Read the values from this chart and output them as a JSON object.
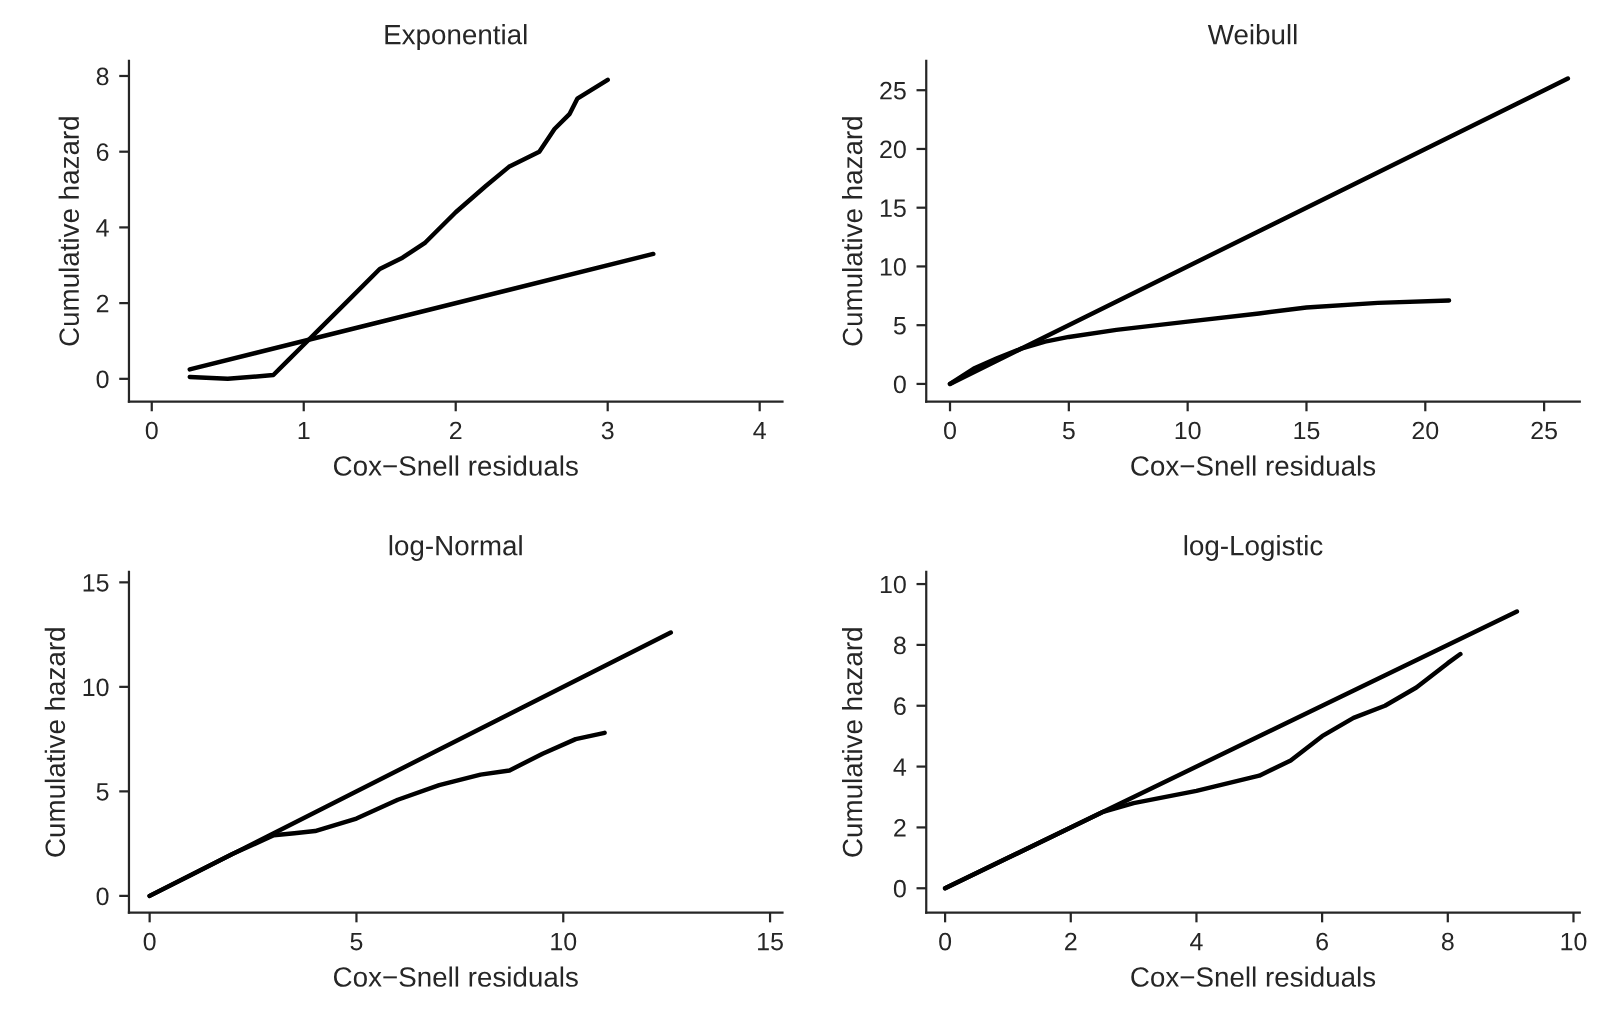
{
  "chart_data": [
    {
      "type": "line",
      "title": "Exponential",
      "xlabel": "Cox−Snell residuals",
      "ylabel": "Cumulative hazard",
      "xlim": [
        -0.15,
        4.15
      ],
      "ylim": [
        -0.6,
        8.4
      ],
      "xticks": [
        0,
        1,
        2,
        3,
        4
      ],
      "yticks": [
        0,
        2,
        4,
        6,
        8
      ],
      "grid": false,
      "legend": false,
      "marker": "none",
      "line_style": "solid",
      "series": [
        {
          "color": "#000000",
          "x": [
            0.25,
            0.5,
            0.8,
            0.9,
            1.0,
            1.1,
            1.3,
            1.5,
            1.65,
            1.8,
            2.0,
            2.2,
            2.35,
            2.55,
            2.65,
            2.75,
            2.8,
            3.0
          ],
          "values": [
            0.05,
            0,
            0.1,
            0.5,
            0.9,
            1.3,
            2.1,
            2.9,
            3.2,
            3.6,
            4.4,
            5.1,
            5.6,
            6.0,
            6.6,
            7.0,
            7.4,
            7.9
          ]
        },
        {
          "color": "#000000",
          "x": [
            0.25,
            3.3
          ],
          "values": [
            0.25,
            3.3
          ]
        }
      ]
    },
    {
      "type": "line",
      "title": "Weibull",
      "xlabel": "Cox−Snell residuals",
      "ylabel": "Cumulative hazard",
      "xlim": [
        -1,
        26.5
      ],
      "ylim": [
        -1.5,
        27.5
      ],
      "xticks": [
        0,
        5,
        10,
        15,
        20,
        25
      ],
      "yticks": [
        0,
        5,
        10,
        15,
        20,
        25
      ],
      "grid": false,
      "legend": false,
      "marker": "none",
      "line_style": "solid",
      "series": [
        {
          "color": "#000000",
          "x": [
            0,
            1,
            2,
            3,
            4,
            5,
            7,
            10,
            13,
            15,
            18,
            21
          ],
          "values": [
            0,
            1.3,
            2.2,
            3.0,
            3.6,
            4.0,
            4.6,
            5.3,
            6.0,
            6.5,
            6.9,
            7.1
          ]
        },
        {
          "color": "#000000",
          "x": [
            0,
            26
          ],
          "values": [
            0,
            26
          ]
        }
      ]
    },
    {
      "type": "line",
      "title": "log-Normal",
      "xlabel": "Cox−Snell residuals",
      "ylabel": "Cumulative hazard",
      "xlim": [
        -0.5,
        15.3
      ],
      "ylim": [
        -0.8,
        15.5
      ],
      "xticks": [
        0,
        5,
        10,
        15
      ],
      "yticks": [
        0,
        5,
        10,
        15
      ],
      "grid": false,
      "legend": false,
      "marker": "none",
      "line_style": "solid",
      "series": [
        {
          "color": "#000000",
          "x": [
            0,
            1,
            2,
            3,
            3.5,
            4,
            5,
            6,
            7,
            8,
            8.7,
            9.5,
            10.3,
            11
          ],
          "values": [
            0,
            1,
            2,
            2.9,
            3.0,
            3.1,
            3.7,
            4.6,
            5.3,
            5.8,
            6.0,
            6.8,
            7.5,
            7.8
          ]
        },
        {
          "color": "#000000",
          "x": [
            0,
            12.6
          ],
          "values": [
            0,
            12.6
          ]
        }
      ]
    },
    {
      "type": "line",
      "title": "log-Logistic",
      "xlabel": "Cox−Snell residuals",
      "ylabel": "Cumulative hazard",
      "xlim": [
        -0.3,
        10.1
      ],
      "ylim": [
        -0.8,
        10.4
      ],
      "xticks": [
        0,
        2,
        4,
        6,
        8,
        10
      ],
      "yticks": [
        0,
        2,
        4,
        6,
        8,
        10
      ],
      "grid": false,
      "legend": false,
      "marker": "none",
      "line_style": "solid",
      "series": [
        {
          "color": "#000000",
          "x": [
            0,
            1,
            2,
            2.5,
            3,
            4,
            5,
            5.5,
            6,
            6.5,
            7,
            7.5,
            8,
            8.2
          ],
          "values": [
            0,
            1,
            2,
            2.5,
            2.8,
            3.2,
            3.7,
            4.2,
            5.0,
            5.6,
            6.0,
            6.6,
            7.4,
            7.7
          ]
        },
        {
          "color": "#000000",
          "x": [
            0,
            9.1
          ],
          "values": [
            0,
            9.1
          ]
        }
      ]
    }
  ]
}
